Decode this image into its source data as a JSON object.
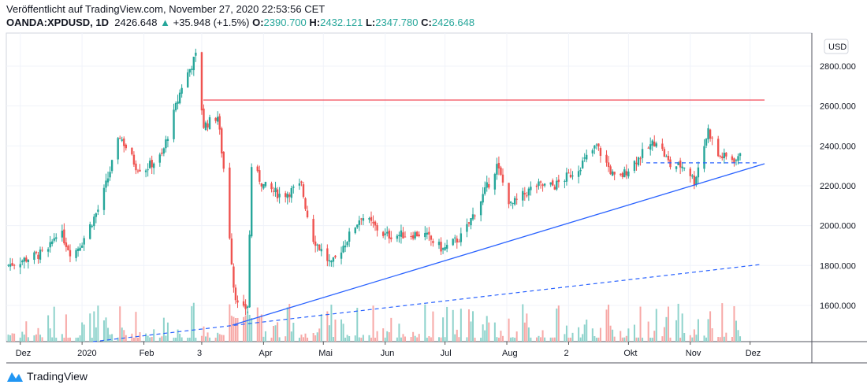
{
  "header": {
    "published": "Veröffentlicht auf TradingView.com, November 27, 2020 22:53:56 CET",
    "symbol": "OANDA:XPDUSD, 1D",
    "last": "2426.648",
    "up_arrow": "▲",
    "change": "+35.948 (+1.5%)",
    "o_label": "O:",
    "o": "2390.700",
    "h_label": "H:",
    "h": "2432.121",
    "l_label": "L:",
    "l": "2347.780",
    "c_label": "C:",
    "c": "2426.648"
  },
  "currency": "USD",
  "brand": "TradingView",
  "colors": {
    "up": "#26a69a",
    "down": "#ef5350",
    "trend": "#2962ff",
    "resistance": "#f23645",
    "vol_up": "#8fd3cc",
    "vol_down": "#f7a9a7"
  },
  "chart_data": {
    "type": "candlestick",
    "ylim": [
      1420,
      2960
    ],
    "yticks": [
      "2800.000",
      "2600.000",
      "2400.000",
      "2200.000",
      "2000.000",
      "1800.000",
      "1600.000"
    ],
    "ytick_values": [
      2800,
      2600,
      2400,
      2200,
      2000,
      1800,
      1600
    ],
    "xticks": [
      "Dez",
      "2020",
      "Feb",
      "3",
      "Apr",
      "Mai",
      "Jun",
      "Jul",
      "Aug",
      "2",
      "Okt",
      "Nov",
      "Dez"
    ],
    "xtick_days": [
      7,
      38,
      69,
      98,
      129,
      159,
      190,
      220,
      251,
      282,
      312,
      343,
      373
    ],
    "last_day": 369,
    "close_keypoints": [
      [
        0,
        1800
      ],
      [
        21,
        1870
      ],
      [
        26,
        1990
      ],
      [
        33,
        1850
      ],
      [
        38,
        1920
      ],
      [
        47,
        2100
      ],
      [
        57,
        2450
      ],
      [
        65,
        2300
      ],
      [
        69,
        2280
      ],
      [
        78,
        2350
      ],
      [
        88,
        2700
      ],
      [
        95,
        2850
      ],
      [
        99,
        2500
      ],
      [
        106,
        2550
      ],
      [
        110,
        2200
      ],
      [
        114,
        1700
      ],
      [
        117,
        1550
      ],
      [
        121,
        1600
      ],
      [
        123,
        2300
      ],
      [
        129,
        2200
      ],
      [
        138,
        2150
      ],
      [
        148,
        2200
      ],
      [
        153,
        1950
      ],
      [
        163,
        1800
      ],
      [
        178,
        2050
      ],
      [
        190,
        1950
      ],
      [
        209,
        1960
      ],
      [
        219,
        1880
      ],
      [
        229,
        1950
      ],
      [
        239,
        2150
      ],
      [
        246,
        2300
      ],
      [
        253,
        2100
      ],
      [
        265,
        2200
      ],
      [
        275,
        2200
      ],
      [
        286,
        2280
      ],
      [
        296,
        2400
      ],
      [
        306,
        2220
      ],
      [
        316,
        2330
      ],
      [
        326,
        2430
      ],
      [
        333,
        2300
      ],
      [
        341,
        2300
      ],
      [
        345,
        2220
      ],
      [
        352,
        2480
      ],
      [
        357,
        2350
      ],
      [
        367,
        2330
      ],
      [
        369,
        2426.648
      ]
    ],
    "annotations": {
      "resistance_level": 2630,
      "trendline": [
        [
          118,
          1500
        ],
        [
          392,
          2310
        ]
      ],
      "dashed_trendline": [
        [
          46,
          1420
        ],
        [
          390,
          1800
        ]
      ],
      "dashed_level": [
        [
          327,
          2315
        ],
        [
          390,
          2315
        ]
      ]
    }
  }
}
